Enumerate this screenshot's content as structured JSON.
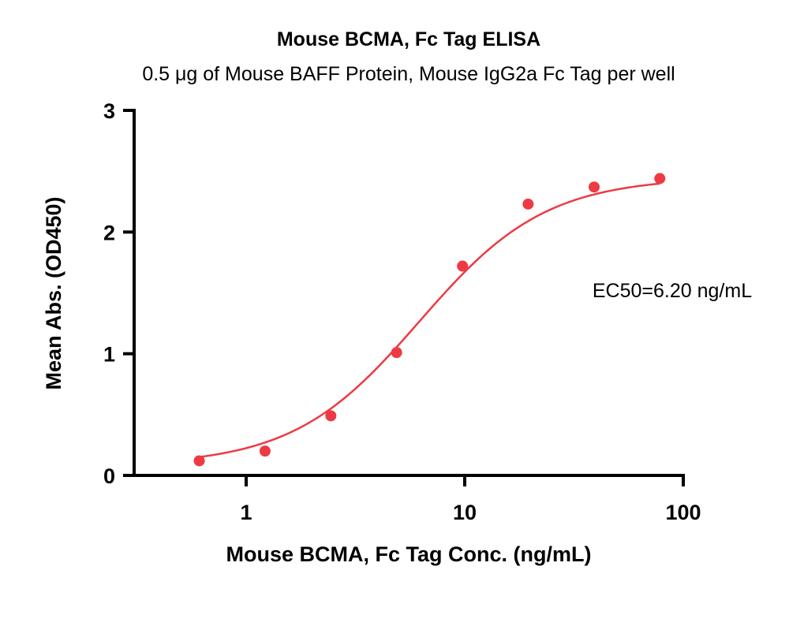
{
  "chart_data": {
    "type": "scatter",
    "title": "Mouse BCMA, Fc Tag ELISA",
    "subtitle": "0.5 μg of Mouse BAFF Protein, Mouse IgG2a Fc Tag per well",
    "xlabel": "Mouse BCMA, Fc Tag Conc. (ng/mL)",
    "ylabel": "Mean Abs. (OD450)",
    "x_scale": "log",
    "xlim": [
      0.4,
      100
    ],
    "ylim": [
      0,
      3
    ],
    "x_ticks": [
      1,
      10,
      100
    ],
    "x_tick_labels": [
      "1",
      "10",
      "100"
    ],
    "y_ticks": [
      0,
      1,
      2,
      3
    ],
    "y_tick_labels": [
      "0",
      "1",
      "2",
      "3"
    ],
    "grid": false,
    "series": [
      {
        "x": [
          0.61,
          1.22,
          2.44,
          4.88,
          9.77,
          19.5,
          39.1,
          78.1
        ],
        "y": [
          0.12,
          0.2,
          0.49,
          1.01,
          1.72,
          2.23,
          2.37,
          2.44
        ]
      }
    ],
    "fit_curve": {
      "model": "4PL",
      "bottom": 0.08,
      "top": 2.45,
      "ec50": 6.2,
      "hill": 1.5
    },
    "annotations": [
      "EC50=6.20 ng/mL"
    ],
    "colors": {
      "series": "#ee3a43",
      "axis": "#000000"
    }
  }
}
